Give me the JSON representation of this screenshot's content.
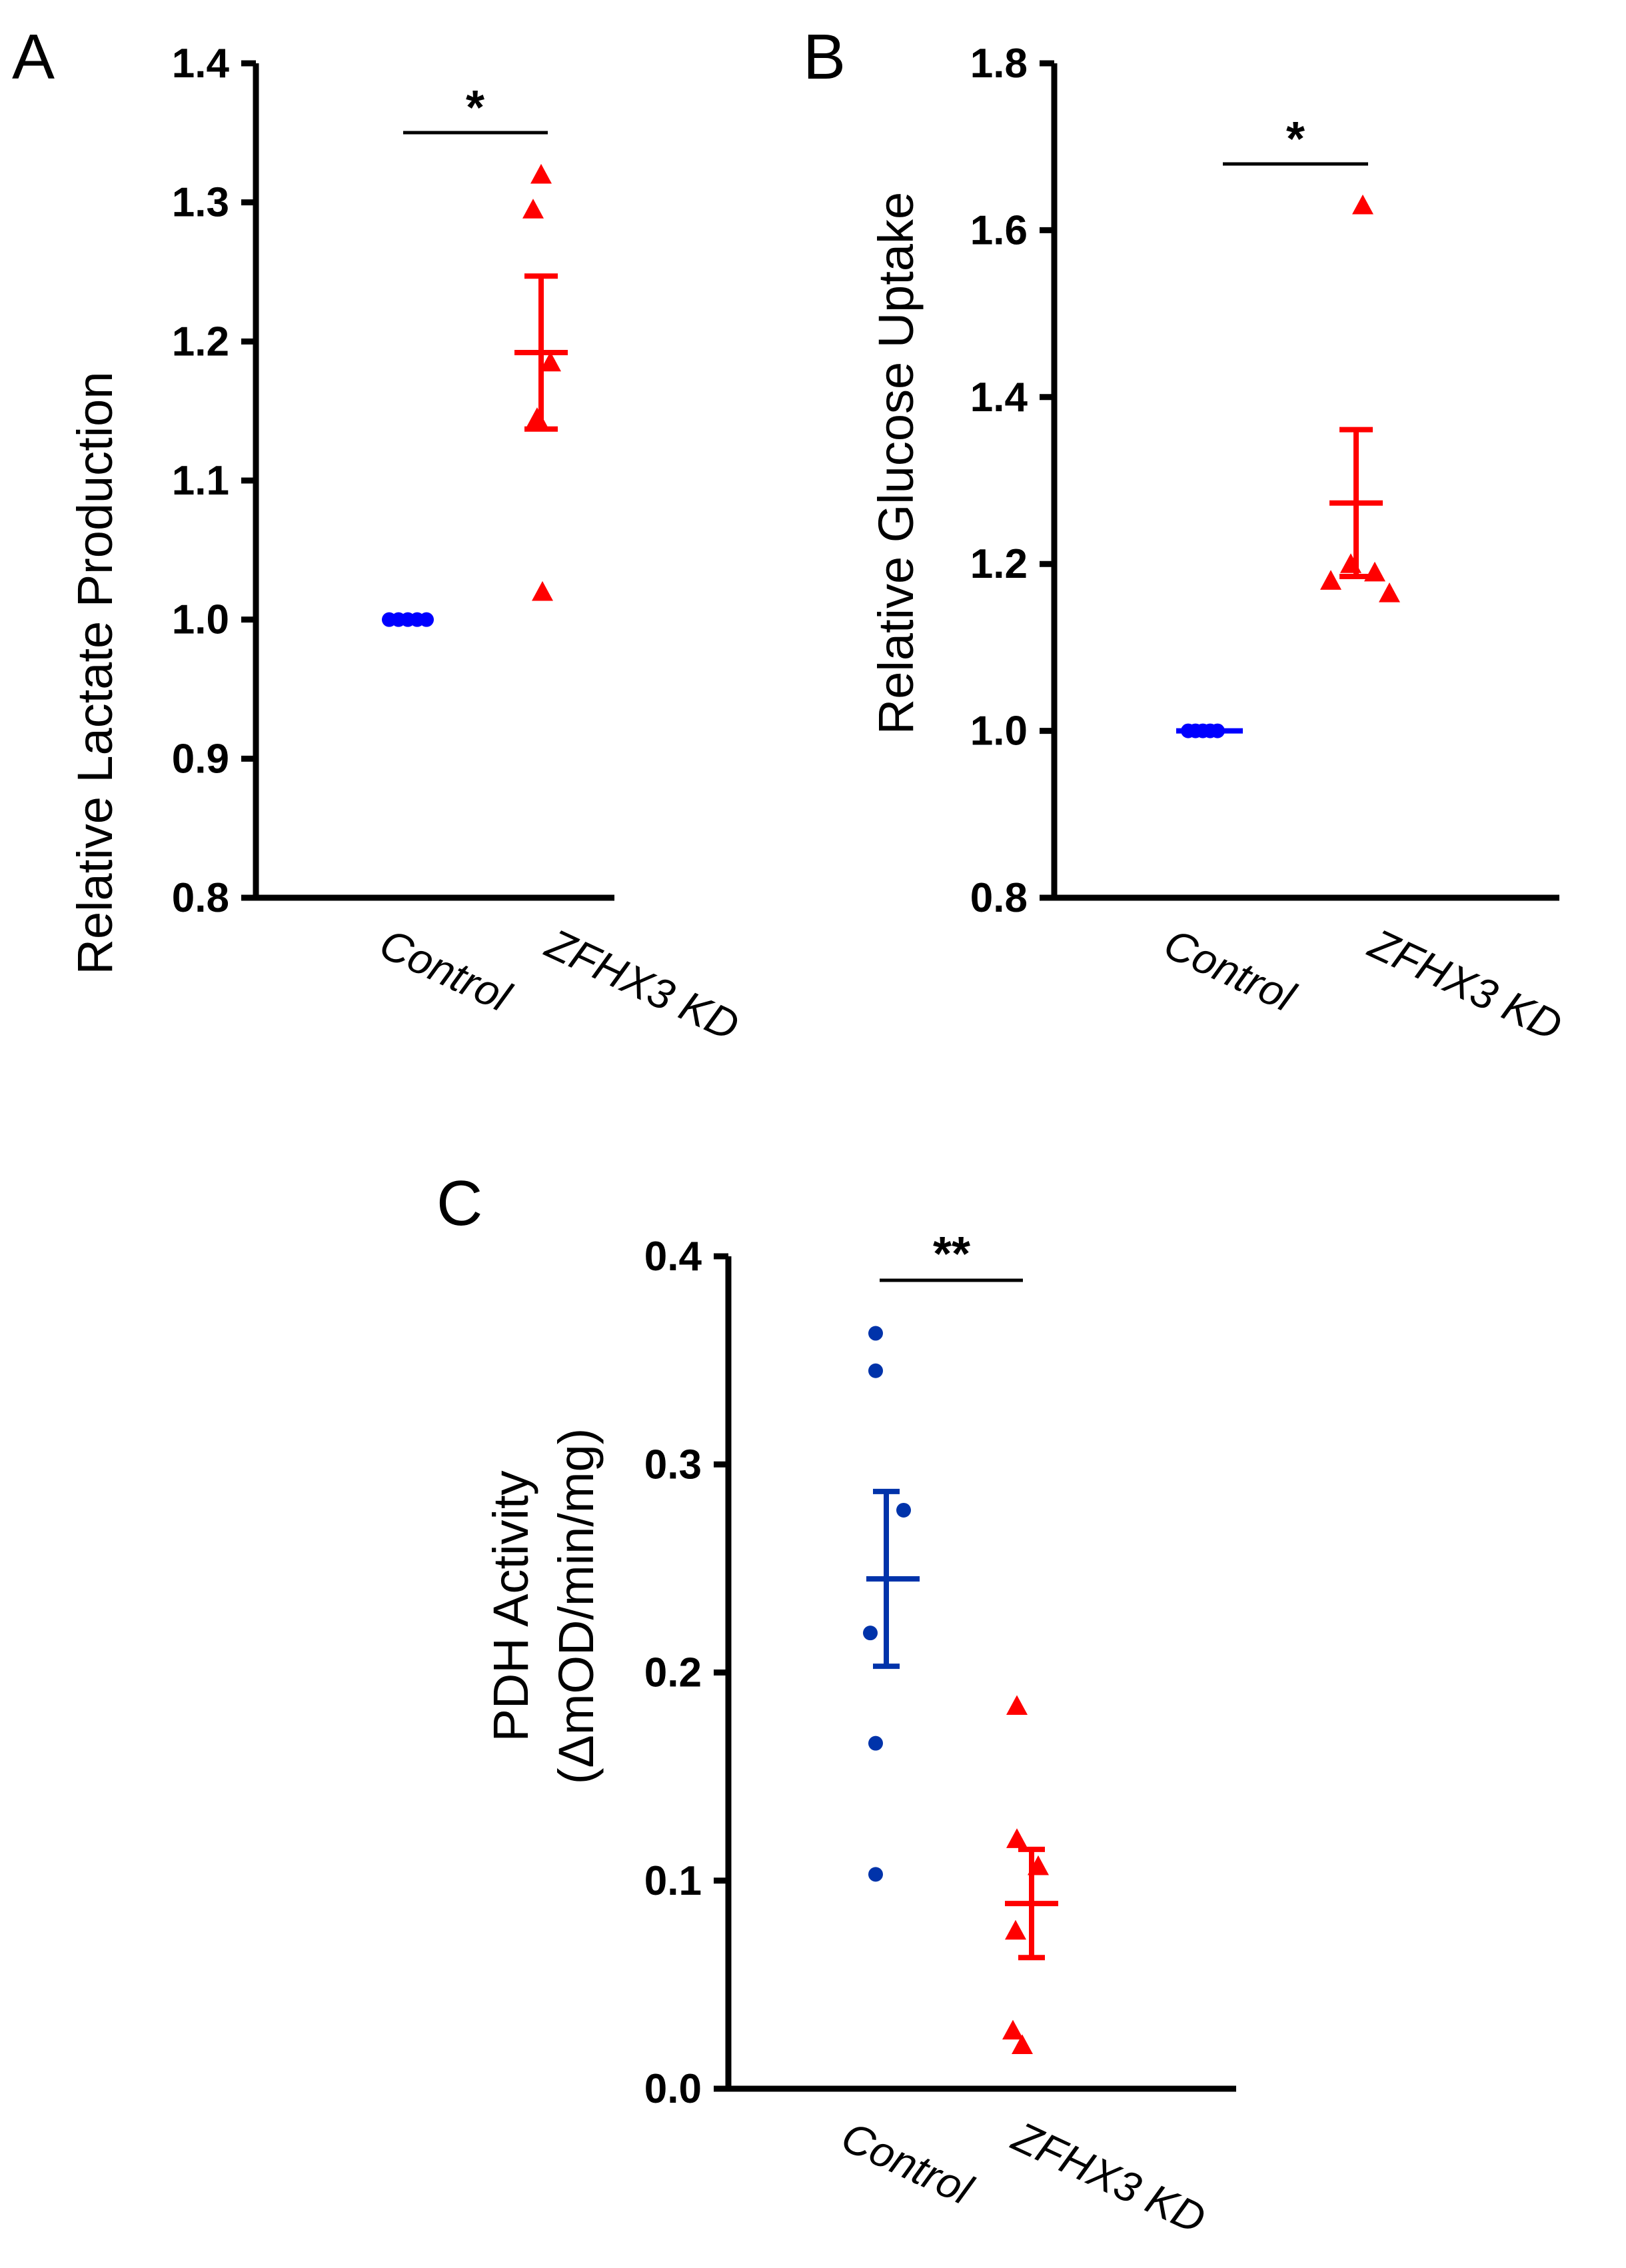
{
  "colors": {
    "control_A": "#0000ff",
    "control_B": "#0000ff",
    "control_C": "#0033aa",
    "kd": "#ff0000",
    "axis": "#000000"
  },
  "chart_data": [
    {
      "type": "scatter",
      "panel_label": "A",
      "ylabel": "Relative Lactate Production",
      "ylim": [
        0.8,
        1.4
      ],
      "yticks": [
        "0.8",
        "0.9",
        "1.0",
        "1.1",
        "1.2",
        "1.3",
        "1.4"
      ],
      "categories": [
        "Control",
        "ZFHX3 KD"
      ],
      "series": [
        {
          "name": "Control",
          "marker": "circle",
          "values": [
            1.0,
            1.0,
            1.0,
            1.0,
            1.0
          ],
          "mean": 1.0,
          "sem": 0.0
        },
        {
          "name": "ZFHX3 KD",
          "marker": "triangle",
          "values": [
            1.32,
            1.295,
            1.185,
            1.145,
            1.02
          ],
          "mean": 1.192,
          "sem": 0.055
        }
      ],
      "significance": {
        "label": "*",
        "between": [
          "Control",
          "ZFHX3 KD"
        ],
        "y": 1.352
      }
    },
    {
      "type": "scatter",
      "panel_label": "B",
      "ylabel": "Relative Glucose Uptake",
      "ylim": [
        0.8,
        1.8
      ],
      "yticks": [
        "0.8",
        "1.0",
        "1.2",
        "1.4",
        "1.6",
        "1.8"
      ],
      "categories": [
        "Control",
        "ZFHX3 KD"
      ],
      "series": [
        {
          "name": "Control",
          "marker": "circle",
          "values": [
            1.0,
            1.0,
            1.0,
            1.0,
            1.0
          ],
          "mean": 1.0,
          "sem": 0.0
        },
        {
          "name": "ZFHX3 KD",
          "marker": "triangle",
          "values": [
            1.63,
            1.2,
            1.19,
            1.18,
            1.165
          ],
          "mean": 1.273,
          "sem": 0.088
        }
      ],
      "significance": {
        "label": "*",
        "between": [
          "Control",
          "ZFHX3 KD"
        ],
        "y": 1.685
      }
    },
    {
      "type": "scatter",
      "panel_label": "C",
      "ylabel": "PDH Activity",
      "ylabel2": "(ΔmOD/min/mg)",
      "ylim": [
        0.0,
        0.4
      ],
      "yticks": [
        "0.0",
        "0.1",
        "0.2",
        "0.3",
        "0.4"
      ],
      "categories": [
        "Control",
        "ZFHX3 KD"
      ],
      "series": [
        {
          "name": "Control",
          "marker": "circle",
          "values": [
            0.363,
            0.345,
            0.278,
            0.219,
            0.166,
            0.103
          ],
          "mean": 0.245,
          "sem": 0.042
        },
        {
          "name": "ZFHX3 KD",
          "marker": "triangle",
          "values": [
            0.184,
            0.12,
            0.107,
            0.076,
            0.028,
            0.021
          ],
          "mean": 0.089,
          "sem": 0.026
        }
      ],
      "significance": {
        "label": "**",
        "between": [
          "Control",
          "ZFHX3 KD"
        ],
        "y": 0.378
      }
    }
  ]
}
